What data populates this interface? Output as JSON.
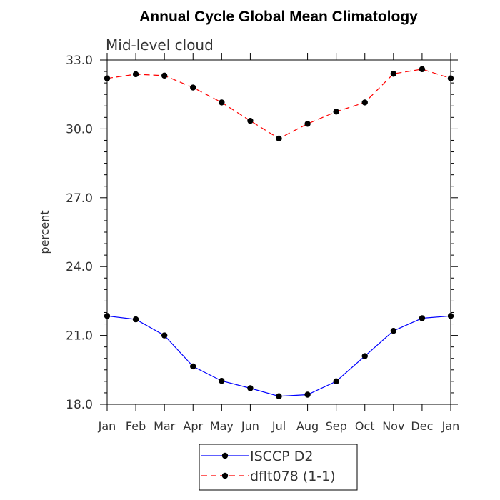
{
  "chart_data": {
    "type": "line",
    "title": "Annual Cycle Global Mean Climatology",
    "subtitle": "Mid-level cloud",
    "xlabel": "",
    "ylabel": "percent",
    "categories": [
      "Jan",
      "Feb",
      "Mar",
      "Apr",
      "May",
      "Jun",
      "Jul",
      "Aug",
      "Sep",
      "Oct",
      "Nov",
      "Dec",
      "Jan"
    ],
    "ylim": [
      18.0,
      33.0
    ],
    "yticks": [
      "18.0",
      "21.0",
      "24.0",
      "27.0",
      "30.0",
      "33.0"
    ],
    "series": [
      {
        "name": "ISCCP D2",
        "color": "#0000ff",
        "dash": "solid",
        "values": [
          21.85,
          21.7,
          21.0,
          19.65,
          19.02,
          18.7,
          18.35,
          18.42,
          19.0,
          20.1,
          21.2,
          21.75,
          21.85
        ]
      },
      {
        "name": "dflt078 (1-1)",
        "color": "#ff0000",
        "dash": "dashed",
        "values": [
          32.2,
          32.38,
          32.32,
          31.8,
          31.15,
          30.35,
          29.58,
          30.22,
          30.75,
          31.15,
          32.4,
          32.6,
          32.2
        ]
      }
    ],
    "grid": false,
    "legend_position": "bottom-center"
  }
}
